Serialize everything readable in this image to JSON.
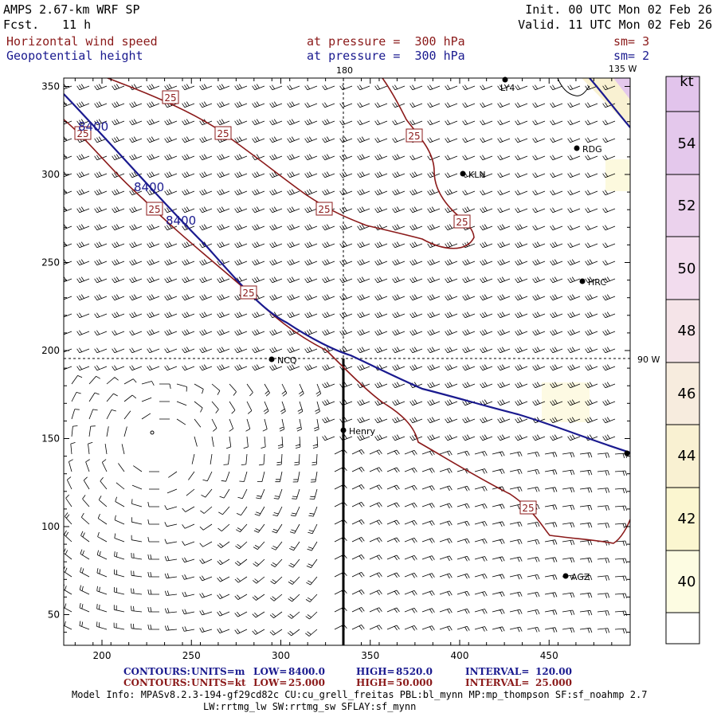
{
  "header": {
    "model": "AMPS 2.67-km WRF SP",
    "forecast_label": "Fcst.",
    "forecast_hours": "11 h",
    "init": "Init. 00 UTC Mon 02 Feb 26",
    "valid": "Valid. 11 UTC Mon 02 Feb 26"
  },
  "fields": [
    {
      "name": "Horizontal wind speed",
      "level": "at pressure =  300 hPa",
      "smoothing": "sm= 3",
      "color": "#8b1a1a"
    },
    {
      "name": "Geopotential height",
      "level": "at pressure =  300 hPa",
      "smoothing": "sm= 2",
      "color": "#1a1a8f"
    }
  ],
  "map": {
    "x_ticks": [
      "200",
      "250",
      "300",
      "350",
      "400",
      "450"
    ],
    "y_ticks": [
      "350",
      "300",
      "250",
      "200",
      "150",
      "100",
      "50"
    ],
    "meridian_labels": {
      "top_180": "180",
      "top_135w": "135 W",
      "right_90w": "90 W"
    },
    "stations": [
      "RDG",
      "KLN",
      "HRC",
      "NCQ",
      "Henry",
      "AGZ",
      "LY4"
    ],
    "height_contour_labels": [
      "8400",
      "8400",
      "8400"
    ],
    "speed_contour_labels": [
      "25",
      "25",
      "25",
      "25",
      "25",
      "25",
      "25",
      "25"
    ],
    "colors": {
      "height": "#1a1a8f",
      "speed": "#8b1a1a",
      "barbs": "#000000"
    }
  },
  "colorbar": {
    "unit": "kt",
    "ticks": [
      "54",
      "52",
      "50",
      "48",
      "46",
      "44",
      "42",
      "40"
    ],
    "colors": [
      "#e4c8ec",
      "#ebd2ed",
      "#f2dcee",
      "#f5e4e8",
      "#f7ecde",
      "#f9f1d2",
      "#fbf6d0",
      "#fdfce2"
    ]
  },
  "footer": {
    "height_contours": [
      "CONTOURS:",
      "UNITS=m",
      "LOW=",
      "8400.0",
      "HIGH=",
      "8520.0",
      "INTERVAL=",
      "120.00"
    ],
    "speed_contours": [
      "CONTOURS:",
      "UNITS=kt",
      "LOW=",
      "25.000",
      "HIGH=",
      "50.000",
      "INTERVAL=",
      "25.000"
    ],
    "model_info_line1": "Model Info: MPASv8.2.3-194-gf29cd82c CU:cu_grell_freitas PBL:bl_mynn MP:mp_thompson SF:sf_noahmp 2.7",
    "model_info_line2": "LW:rrtmg_lw SW:rrtmg_sw SFLAY:sf_mynn"
  }
}
